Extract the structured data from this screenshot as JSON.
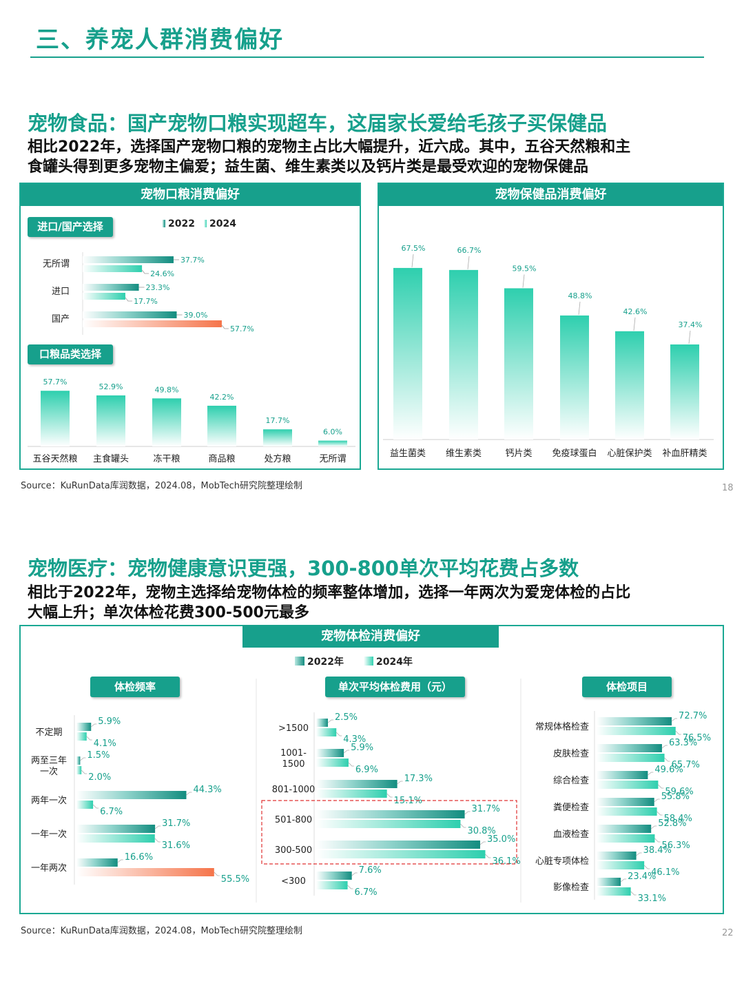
{
  "page": {
    "title": "三、养宠人群消费偏好"
  },
  "section1": {
    "title": "宠物食品：国产宠物口粮实现超车，这届家长爱给毛孩子买保健品",
    "subtitle_line1": "相比2022年，选择国产宠物口粮的宠物主占比大幅提升，近六成。其中，五谷天然粮和主",
    "subtitle_line2": "食罐头得到更多宠物主偏爱；益生菌、维生素类以及钙片类是最受欢迎的宠物保健品",
    "left_panel_title": "宠物口粮消费偏好",
    "right_panel_title": "宠物保健品消费偏好",
    "pill_origin": "进口/国产选择",
    "pill_category": "口粮品类选择",
    "legend_2022": "2022",
    "legend_2024": "2024",
    "source": "Source：KuRunData库润数据，2024.08，MobTech研究院整理绘制",
    "page_number": "18"
  },
  "section2": {
    "title": "宠物医疗：宠物健康意识更强，300-800单次平均花费占多数",
    "subtitle_line1": "相比于2022年，宠物主选择给宠物体检的频率整体增加，选择一年两次为爱宠体检的占比",
    "subtitle_line2": "大幅上升；单次体检花费300-500元最多",
    "panel_title": "宠物体检消费偏好",
    "legend_2022": "2022年",
    "legend_2024": "2024年",
    "pill_freq": "体检频率",
    "pill_cost": "单次平均体检费用（元）",
    "pill_items": "体检项目",
    "source": "Source：KuRunData库润数据，2024.08，MobTech研究院整理绘制",
    "page_number": "22"
  },
  "colors": {
    "teal": "#17a08c",
    "bar_2022_dark": "#138d80",
    "bar_2024_light": "#33d1b1",
    "highlight_orange": "#f5744a",
    "dashed_box": "#e03030"
  },
  "chart_data": [
    {
      "id": "origin",
      "type": "bar",
      "orientation": "horizontal",
      "categories": [
        "无所谓",
        "进口",
        "国产"
      ],
      "series": [
        {
          "name": "2022",
          "values": [
            37.7,
            23.3,
            39.0
          ]
        },
        {
          "name": "2024",
          "values": [
            24.6,
            17.7,
            57.7
          ]
        }
      ],
      "labels_2022": [
        "37.7%",
        "23.3%",
        "39.0%"
      ],
      "labels_2024": [
        "24.6%",
        "17.7%",
        "57.7%"
      ],
      "highlight": {
        "category": "国产",
        "series": "2024"
      }
    },
    {
      "id": "food_category",
      "type": "bar",
      "categories": [
        "五谷天然粮",
        "主食罐头",
        "冻干粮",
        "商品粮",
        "处方粮",
        "无所谓"
      ],
      "values": [
        57.7,
        52.9,
        49.8,
        42.2,
        17.7,
        6.0
      ],
      "labels": [
        "57.7%",
        "52.9%",
        "49.8%",
        "42.2%",
        "17.7%",
        "6.0%"
      ]
    },
    {
      "id": "supplements",
      "type": "bar",
      "categories": [
        "益生菌类",
        "维生素类",
        "钙片类",
        "免疫球蛋白",
        "心脏保护类",
        "补血肝精类"
      ],
      "values": [
        67.5,
        66.7,
        59.5,
        48.8,
        42.6,
        37.4
      ],
      "labels": [
        "67.5%",
        "66.7%",
        "59.5%",
        "48.8%",
        "42.6%",
        "37.4%"
      ]
    },
    {
      "id": "checkup_frequency",
      "type": "bar",
      "orientation": "horizontal",
      "categories": [
        "不定期",
        "两至三年一次",
        "两年一次",
        "一年一次",
        "一年两次"
      ],
      "category_lines": [
        [
          "不定期"
        ],
        [
          "两至三年",
          "一次"
        ],
        [
          "两年一次"
        ],
        [
          "一年一次"
        ],
        [
          "一年两次"
        ]
      ],
      "series": [
        {
          "name": "2022年",
          "values": [
            5.9,
            1.5,
            44.3,
            31.7,
            16.6
          ]
        },
        {
          "name": "2024年",
          "values": [
            4.1,
            2.0,
            6.7,
            31.6,
            55.5
          ]
        }
      ],
      "labels_2022": [
        "5.9%",
        "1.5%",
        "44.3%",
        "31.7%",
        "16.6%"
      ],
      "labels_2024": [
        "4.1%",
        "2.0%",
        "6.7%",
        "31.6%",
        "55.5%"
      ],
      "highlight": {
        "category": "一年两次",
        "series": "2024年"
      }
    },
    {
      "id": "checkup_cost",
      "type": "bar",
      "orientation": "horizontal",
      "categories": [
        ">1500",
        "1001-1500",
        "801-1000",
        "501-800",
        "300-500",
        "<300"
      ],
      "category_lines": [
        [
          ">1500"
        ],
        [
          "1001-",
          "1500"
        ],
        [
          "801-1000"
        ],
        [
          "501-800"
        ],
        [
          "300-500"
        ],
        [
          "<300"
        ]
      ],
      "series": [
        {
          "name": "2022年",
          "values": [
            2.5,
            5.9,
            17.3,
            31.7,
            35.0,
            7.6
          ]
        },
        {
          "name": "2024年",
          "values": [
            4.3,
            6.9,
            15.1,
            30.8,
            36.1,
            6.7
          ]
        }
      ],
      "labels_2022": [
        "2.5%",
        "5.9%",
        "17.3%",
        "31.7%",
        "35.0%",
        "7.6%"
      ],
      "labels_2024": [
        "4.3%",
        "6.9%",
        "15.1%",
        "30.8%",
        "36.1%",
        "6.7%"
      ],
      "highlight_box": [
        "501-800",
        "300-500"
      ]
    },
    {
      "id": "checkup_items",
      "type": "bar",
      "orientation": "horizontal",
      "categories": [
        "常规体格检查",
        "皮肤检查",
        "综合检查",
        "粪便检查",
        "血液检查",
        "心脏专项体检",
        "影像检查"
      ],
      "series": [
        {
          "name": "2022年",
          "values": [
            72.7,
            63.3,
            49.6,
            55.8,
            52.8,
            38.4,
            23.4
          ]
        },
        {
          "name": "2024年",
          "values": [
            76.5,
            65.7,
            59.6,
            58.4,
            56.3,
            46.1,
            33.1
          ]
        }
      ],
      "labels_2022": [
        "72.7%",
        "63.3%",
        "49.6%",
        "55.8%",
        "52.8%",
        "38.4%",
        "23.4%"
      ],
      "labels_2024": [
        "76.5%",
        "65.7%",
        "59.6%",
        "58.4%",
        "56.3%",
        "46.1%",
        "33.1%"
      ]
    }
  ]
}
